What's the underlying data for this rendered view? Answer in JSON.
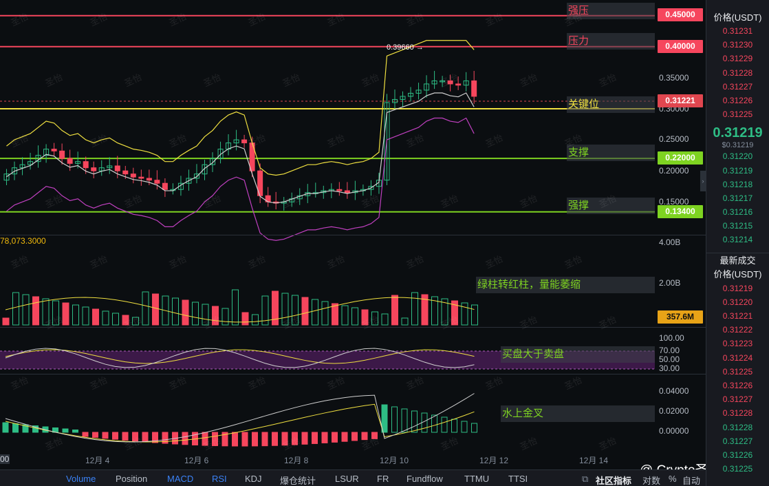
{
  "price_axis": {
    "ticks": [
      "0.35000",
      "0.30000",
      "0.25000",
      "0.20000",
      "0.15000"
    ],
    "volume_ticks": [
      "4.00B",
      "2.00B"
    ],
    "rsi_ticks": [
      "100.00",
      "70.00",
      "50.00",
      "30.00"
    ],
    "macd_ticks": [
      "0.04000",
      "0.02000",
      "0.00000"
    ]
  },
  "levels": [
    {
      "value": "0.45000",
      "color": "#f6465d",
      "label": "强压"
    },
    {
      "value": "0.40000",
      "color": "#f6465d",
      "label": "压力"
    },
    {
      "value": "0.31221",
      "color": "#e0464f",
      "label": ""
    },
    {
      "value": "0.30000",
      "color": "#f0e040",
      "label": "关键位"
    },
    {
      "value": "0.22000",
      "color": "#7ed321",
      "label": "支撑"
    },
    {
      "value": "0.13400",
      "color": "#7ed321",
      "label": "强撑"
    }
  ],
  "peak_marker": "0.39660 →",
  "volume": {
    "readout": "78,073.3000",
    "tag": "357.6M"
  },
  "annotations": {
    "volume": "绿柱转红柱，量能萎缩",
    "rsi": "买盘大于卖盘",
    "macd": "水上金叉"
  },
  "x_axis": [
    "12月 4",
    "12月 6",
    "12月 8",
    "12月 10",
    "12月 12",
    "12月 14"
  ],
  "x_axis_left_stub": "00",
  "watermark_text": "圣怡",
  "brand": "@ Crypto圣怡",
  "bottom_tabs": [
    {
      "label": "Volume",
      "active": true
    },
    {
      "label": "Position",
      "active": false
    },
    {
      "label": "MACD",
      "active": true
    },
    {
      "label": "RSI",
      "active": true
    },
    {
      "label": "KDJ",
      "active": false
    },
    {
      "label": "爆仓统计",
      "active": false
    },
    {
      "label": "LSUR",
      "active": false
    },
    {
      "label": "FR",
      "active": false
    },
    {
      "label": "Fundflow",
      "active": false
    },
    {
      "label": "TTMU",
      "active": false
    },
    {
      "label": "TTSI",
      "active": false
    }
  ],
  "bottom_right": {
    "community": "社区指标",
    "pair": "对数",
    "percent": "%",
    "auto": "自动"
  },
  "orderbook": {
    "header": "价格(USDT)",
    "asks": [
      "0.31231",
      "0.31230",
      "0.31229",
      "0.31228",
      "0.31227",
      "0.31226",
      "0.31225"
    ],
    "last_price": "0.31219",
    "last_price_sub": "$0.31219",
    "bids": [
      "0.31220",
      "0.31219",
      "0.31218",
      "0.31217",
      "0.31216",
      "0.31215",
      "0.31214"
    ],
    "trades_title": "最新成交",
    "trades_header": "价格(USDT)",
    "trades": [
      {
        "price": "0.31219",
        "side": "sell"
      },
      {
        "price": "0.31220",
        "side": "sell"
      },
      {
        "price": "0.31221",
        "side": "sell"
      },
      {
        "price": "0.31222",
        "side": "sell"
      },
      {
        "price": "0.31223",
        "side": "sell"
      },
      {
        "price": "0.31224",
        "side": "sell"
      },
      {
        "price": "0.31225",
        "side": "sell"
      },
      {
        "price": "0.31226",
        "side": "sell"
      },
      {
        "price": "0.31227",
        "side": "sell"
      },
      {
        "price": "0.31228",
        "side": "sell"
      },
      {
        "price": "0.31228",
        "side": "buy"
      },
      {
        "price": "0.31227",
        "side": "buy"
      },
      {
        "price": "0.31226",
        "side": "buy"
      },
      {
        "price": "0.31225",
        "side": "buy"
      }
    ]
  },
  "colors": {
    "up": "#2ebd85",
    "down": "#f6465d",
    "bb_mid": "#f0e040",
    "bb_upper": "#f0e040",
    "bb_lower": "#c040c0",
    "ma_white": "#d0d0d0"
  }
}
